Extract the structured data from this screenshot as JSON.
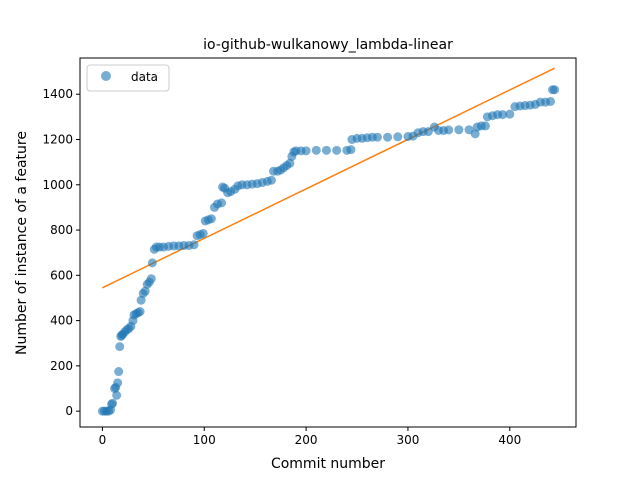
{
  "chart_data": {
    "type": "scatter",
    "title": "io-github-wulkanowy_lambda-linear",
    "xlabel": "Commit number",
    "ylabel": "Number of instance of a feature",
    "xlim": [
      -22,
      465
    ],
    "ylim": [
      -70,
      1560
    ],
    "xticks": [
      0,
      100,
      200,
      300,
      400
    ],
    "yticks": [
      0,
      200,
      400,
      600,
      800,
      1000,
      1200,
      1400
    ],
    "grid": false,
    "legend": {
      "position": "top-left",
      "entries": [
        "data"
      ]
    },
    "colors": {
      "data": "#1f77b4",
      "fit": "#ff7f0e"
    },
    "series": [
      {
        "name": "data",
        "kind": "scatter",
        "points": [
          [
            0,
            0
          ],
          [
            2,
            0
          ],
          [
            4,
            0
          ],
          [
            6,
            0
          ],
          [
            8,
            5
          ],
          [
            9,
            30
          ],
          [
            10,
            35
          ],
          [
            12,
            100
          ],
          [
            13,
            105
          ],
          [
            14,
            70
          ],
          [
            15,
            125
          ],
          [
            16,
            175
          ],
          [
            17,
            285
          ],
          [
            18,
            330
          ],
          [
            19,
            335
          ],
          [
            20,
            340
          ],
          [
            22,
            350
          ],
          [
            24,
            360
          ],
          [
            26,
            365
          ],
          [
            28,
            375
          ],
          [
            30,
            400
          ],
          [
            31,
            425
          ],
          [
            33,
            430
          ],
          [
            35,
            435
          ],
          [
            37,
            440
          ],
          [
            38,
            490
          ],
          [
            40,
            520
          ],
          [
            42,
            530
          ],
          [
            44,
            560
          ],
          [
            46,
            570
          ],
          [
            48,
            585
          ],
          [
            49,
            655
          ],
          [
            51,
            715
          ],
          [
            53,
            725
          ],
          [
            56,
            725
          ],
          [
            60,
            725
          ],
          [
            65,
            728
          ],
          [
            70,
            730
          ],
          [
            75,
            730
          ],
          [
            80,
            732
          ],
          [
            85,
            732
          ],
          [
            90,
            735
          ],
          [
            93,
            775
          ],
          [
            96,
            780
          ],
          [
            99,
            785
          ],
          [
            101,
            840
          ],
          [
            104,
            845
          ],
          [
            107,
            850
          ],
          [
            110,
            900
          ],
          [
            113,
            915
          ],
          [
            117,
            920
          ],
          [
            118,
            990
          ],
          [
            120,
            985
          ],
          [
            123,
            965
          ],
          [
            126,
            970
          ],
          [
            130,
            980
          ],
          [
            133,
            995
          ],
          [
            137,
            1000
          ],
          [
            142,
            1000
          ],
          [
            147,
            1003
          ],
          [
            152,
            1005
          ],
          [
            157,
            1010
          ],
          [
            162,
            1015
          ],
          [
            166,
            1020
          ],
          [
            168,
            1060
          ],
          [
            172,
            1060
          ],
          [
            175,
            1065
          ],
          [
            178,
            1075
          ],
          [
            181,
            1085
          ],
          [
            184,
            1095
          ],
          [
            186,
            1125
          ],
          [
            188,
            1145
          ],
          [
            190,
            1150
          ],
          [
            195,
            1150
          ],
          [
            200,
            1150
          ],
          [
            210,
            1152
          ],
          [
            220,
            1152
          ],
          [
            230,
            1152
          ],
          [
            240,
            1152
          ],
          [
            244,
            1155
          ],
          [
            245,
            1200
          ],
          [
            250,
            1205
          ],
          [
            255,
            1205
          ],
          [
            260,
            1208
          ],
          [
            265,
            1210
          ],
          [
            270,
            1210
          ],
          [
            280,
            1210
          ],
          [
            290,
            1212
          ],
          [
            300,
            1213
          ],
          [
            305,
            1215
          ],
          [
            310,
            1230
          ],
          [
            315,
            1235
          ],
          [
            320,
            1235
          ],
          [
            326,
            1255
          ],
          [
            330,
            1240
          ],
          [
            335,
            1240
          ],
          [
            340,
            1242
          ],
          [
            350,
            1243
          ],
          [
            360,
            1243
          ],
          [
            366,
            1225
          ],
          [
            368,
            1255
          ],
          [
            372,
            1260
          ],
          [
            376,
            1260
          ],
          [
            378,
            1300
          ],
          [
            383,
            1305
          ],
          [
            388,
            1310
          ],
          [
            393,
            1310
          ],
          [
            400,
            1312
          ],
          [
            405,
            1345
          ],
          [
            410,
            1348
          ],
          [
            415,
            1350
          ],
          [
            420,
            1352
          ],
          [
            425,
            1355
          ],
          [
            430,
            1365
          ],
          [
            435,
            1365
          ],
          [
            440,
            1368
          ],
          [
            442,
            1420
          ],
          [
            444,
            1420
          ]
        ]
      },
      {
        "kind": "line",
        "points": [
          [
            0,
            545
          ],
          [
            444,
            1515
          ]
        ]
      }
    ]
  }
}
